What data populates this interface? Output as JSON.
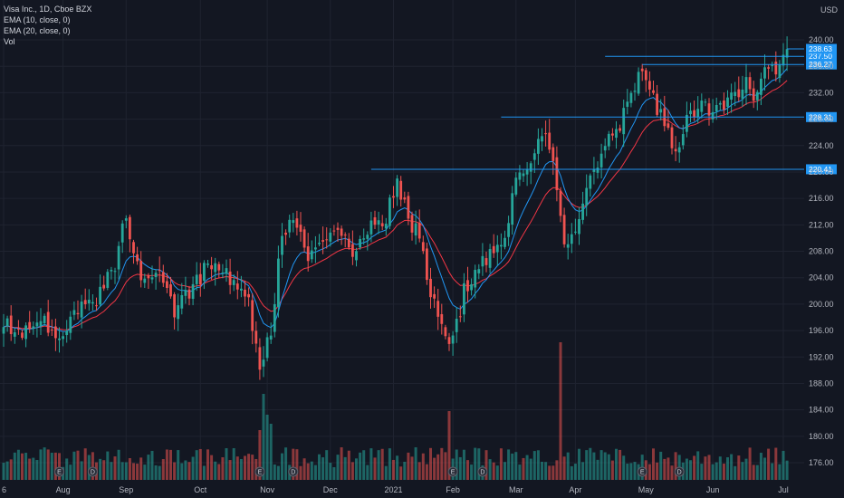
{
  "legend": {
    "symbol": "Visa Inc., 1D, Cboe BZX",
    "ema10": "EMA (10, close, 0)",
    "ema20": "EMA (20, close, 0)",
    "vol": "Vol"
  },
  "currency": "USD",
  "colors": {
    "background": "#131722",
    "grid": "#1f2330",
    "up": "#26a69a",
    "down": "#ef5350",
    "ema10": "#2196f3",
    "ema20": "#f23645",
    "level_line": "#2196f3",
    "tag_bg": "#2196f3"
  },
  "chart_data": {
    "type": "candlestick",
    "y_ticks": [
      176,
      180,
      184,
      188,
      192,
      196,
      200,
      204,
      208,
      212,
      216,
      220,
      224,
      228,
      232,
      236,
      240
    ],
    "y_tick_labels": [
      "176.00",
      "180.00",
      "184.00",
      "188.00",
      "192.00",
      "196.00",
      "200.00",
      "204.00",
      "208.00",
      "212.00",
      "216.00",
      "220.00",
      "224.00",
      "228.00",
      "232.00",
      "236.00",
      "240.00"
    ],
    "y_range": [
      173.4,
      242.6
    ],
    "x_labels": [
      "6",
      "Aug",
      "Sep",
      "Oct",
      "Nov",
      "Dec",
      "2021",
      "Feb",
      "Mar",
      "Apr",
      "May",
      "Jun",
      "Jul"
    ],
    "x_label_bars": [
      0,
      16,
      33,
      53,
      71,
      88,
      105,
      121,
      138,
      154,
      173,
      191,
      210
    ],
    "bar_count": 212,
    "price_levels": [
      {
        "label": "220.41",
        "value": 220.41,
        "from_bar": 99
      },
      {
        "label": "228.31",
        "value": 228.31,
        "from_bar": 134
      },
      {
        "label": "236.27",
        "value": 236.27,
        "from_bar": 172
      },
      {
        "label": "237.50",
        "value": 237.5,
        "from_bar": 162
      },
      {
        "label": "238.63",
        "value": 238.63,
        "from_bar": 211
      }
    ],
    "events": [
      {
        "label": "E",
        "bar": 15
      },
      {
        "label": "D",
        "bar": 24
      },
      {
        "label": "E",
        "bar": 69
      },
      {
        "label": "D",
        "bar": 78
      },
      {
        "label": "E",
        "bar": 121
      },
      {
        "label": "D",
        "bar": 129
      },
      {
        "label": "E",
        "bar": 172
      },
      {
        "label": "D",
        "bar": 182
      }
    ],
    "anchors": [
      [
        0,
        197
      ],
      [
        5,
        195
      ],
      [
        10,
        198
      ],
      [
        15,
        194
      ],
      [
        20,
        199
      ],
      [
        25,
        201
      ],
      [
        30,
        206
      ],
      [
        33,
        214
      ],
      [
        35,
        208
      ],
      [
        38,
        203
      ],
      [
        42,
        206
      ],
      [
        46,
        199
      ],
      [
        50,
        202
      ],
      [
        54,
        205
      ],
      [
        58,
        206
      ],
      [
        62,
        203
      ],
      [
        66,
        200
      ],
      [
        69,
        191
      ],
      [
        72,
        196
      ],
      [
        75,
        211
      ],
      [
        79,
        212
      ],
      [
        82,
        206
      ],
      [
        86,
        210
      ],
      [
        90,
        211
      ],
      [
        94,
        208
      ],
      [
        98,
        211
      ],
      [
        103,
        213
      ],
      [
        106,
        219
      ],
      [
        109,
        213
      ],
      [
        112,
        210
      ],
      [
        115,
        202
      ],
      [
        118,
        196
      ],
      [
        121,
        194
      ],
      [
        124,
        202
      ],
      [
        128,
        206
      ],
      [
        132,
        208
      ],
      [
        136,
        212
      ],
      [
        138,
        219
      ],
      [
        142,
        222
      ],
      [
        146,
        226
      ],
      [
        148,
        221
      ],
      [
        150,
        213
      ],
      [
        151,
        208
      ],
      [
        154,
        211
      ],
      [
        158,
        219
      ],
      [
        162,
        224
      ],
      [
        166,
        227
      ],
      [
        170,
        233
      ],
      [
        172,
        236
      ],
      [
        175,
        231
      ],
      [
        179,
        226
      ],
      [
        181,
        222
      ],
      [
        184,
        228
      ],
      [
        188,
        230
      ],
      [
        192,
        229
      ],
      [
        196,
        231
      ],
      [
        200,
        234
      ],
      [
        202,
        231
      ],
      [
        205,
        235
      ],
      [
        207,
        237
      ],
      [
        209,
        235
      ],
      [
        211,
        238.6
      ]
    ],
    "volume_spikes": [
      {
        "bar": 60,
        "h": 35
      },
      {
        "bar": 70,
        "h": 95
      },
      {
        "bar": 71,
        "h": 72
      },
      {
        "bar": 72,
        "h": 62
      },
      {
        "bar": 120,
        "h": 76
      },
      {
        "bar": 150,
        "h": 152
      },
      {
        "bar": 69,
        "h": 55
      }
    ]
  }
}
